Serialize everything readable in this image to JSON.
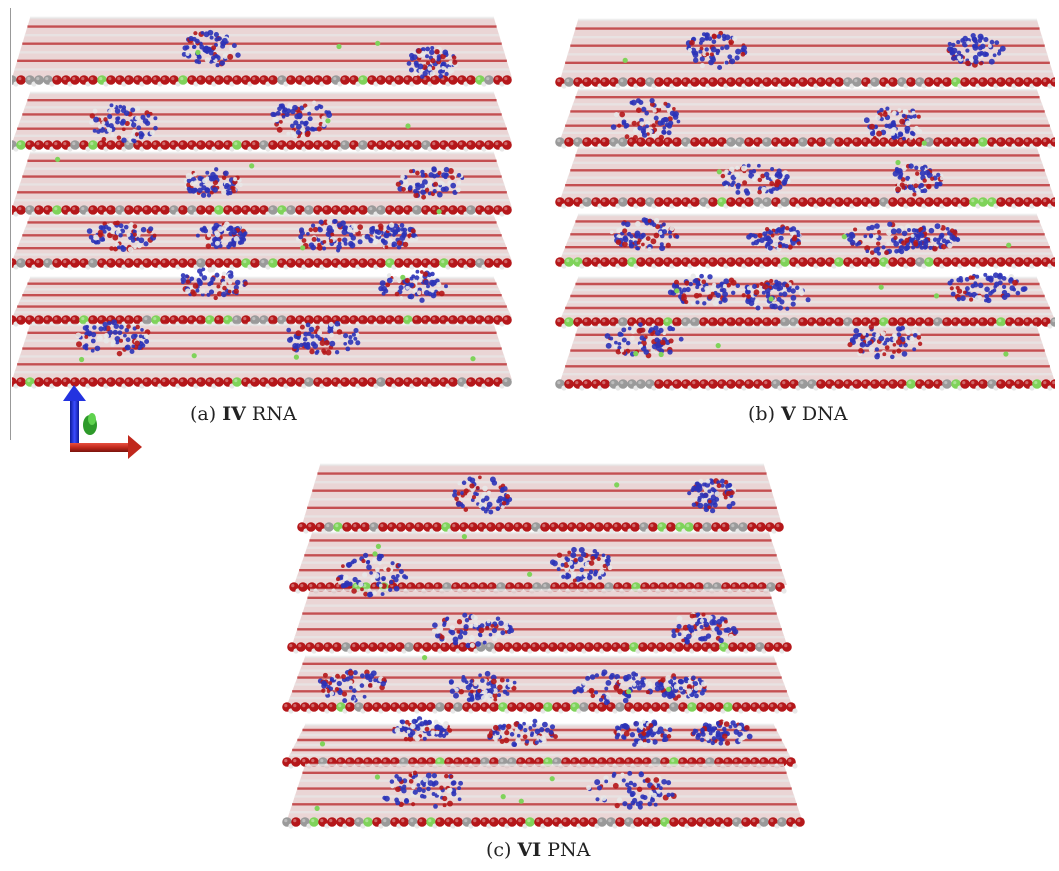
{
  "figure": {
    "panels": [
      {
        "id": "a",
        "label": "(a)",
        "bold": "IV",
        "name": "RNA"
      },
      {
        "id": "b",
        "label": "(b)",
        "bold": "V",
        "name": "DNA"
      },
      {
        "id": "c",
        "label": "(c)",
        "bold": "VI",
        "name": "PNA"
      }
    ],
    "colors": {
      "oxygen": "#b5171a",
      "hydrogen": "#e8e8e8",
      "metal": "#9a9a9a",
      "chloride": "#7fd35a",
      "nucleic": "#2b33b8",
      "axis_x": "#c0281c",
      "axis_y": "#2e9a2a",
      "axis_z": "#1a2bd0"
    },
    "icons": [
      "xyz-axes-icon"
    ]
  }
}
